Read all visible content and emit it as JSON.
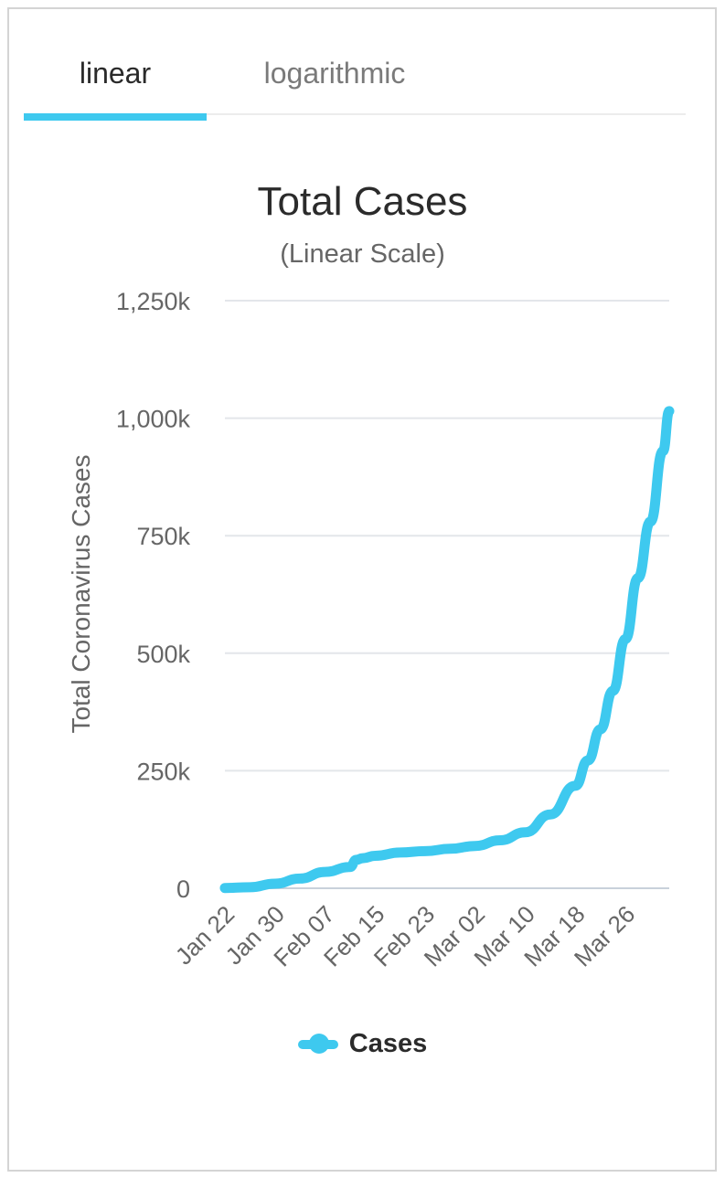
{
  "tabs": [
    {
      "label": "linear",
      "active": true
    },
    {
      "label": "logarithmic",
      "active": false
    }
  ],
  "colors": {
    "accent": "#3ec9ef",
    "series": "#3ec9ef",
    "grid": "#e3e6ea"
  },
  "chart_data": {
    "type": "line",
    "title": "Total Cases",
    "subtitle": "(Linear Scale)",
    "xlabel": "",
    "ylabel": "Total Coronavirus Cases",
    "ylim": [
      0,
      1250000
    ],
    "yticks": [
      0,
      250000,
      500000,
      750000,
      1000000,
      1250000
    ],
    "ytick_labels": [
      "0",
      "250k",
      "500k",
      "750k",
      "1,000k",
      "1,250k"
    ],
    "xtick_labels": [
      "Jan 22",
      "Jan 30",
      "Feb 07",
      "Feb 15",
      "Feb 23",
      "Mar 02",
      "Mar 10",
      "Mar 18",
      "Mar 26"
    ],
    "grid": true,
    "legend": "bottom",
    "series": [
      {
        "name": "Cases",
        "x": [
          "Jan 22",
          "Jan 26",
          "Jan 30",
          "Feb 03",
          "Feb 07",
          "Feb 11",
          "Feb 12",
          "Feb 13",
          "Feb 15",
          "Feb 19",
          "Feb 23",
          "Feb 27",
          "Mar 02",
          "Mar 06",
          "Mar 10",
          "Mar 14",
          "Mar 18",
          "Mar 20",
          "Mar 22",
          "Mar 24",
          "Mar 26",
          "Mar 28",
          "Mar 30",
          "Apr 01",
          "Apr 02"
        ],
        "values": [
          580,
          2100,
          9800,
          20600,
          34800,
          45200,
          60400,
          64000,
          69000,
          76000,
          79000,
          84000,
          90000,
          102000,
          119000,
          157000,
          218000,
          272000,
          338000,
          420000,
          530000,
          660000,
          780000,
          930000,
          1015000
        ]
      }
    ]
  }
}
